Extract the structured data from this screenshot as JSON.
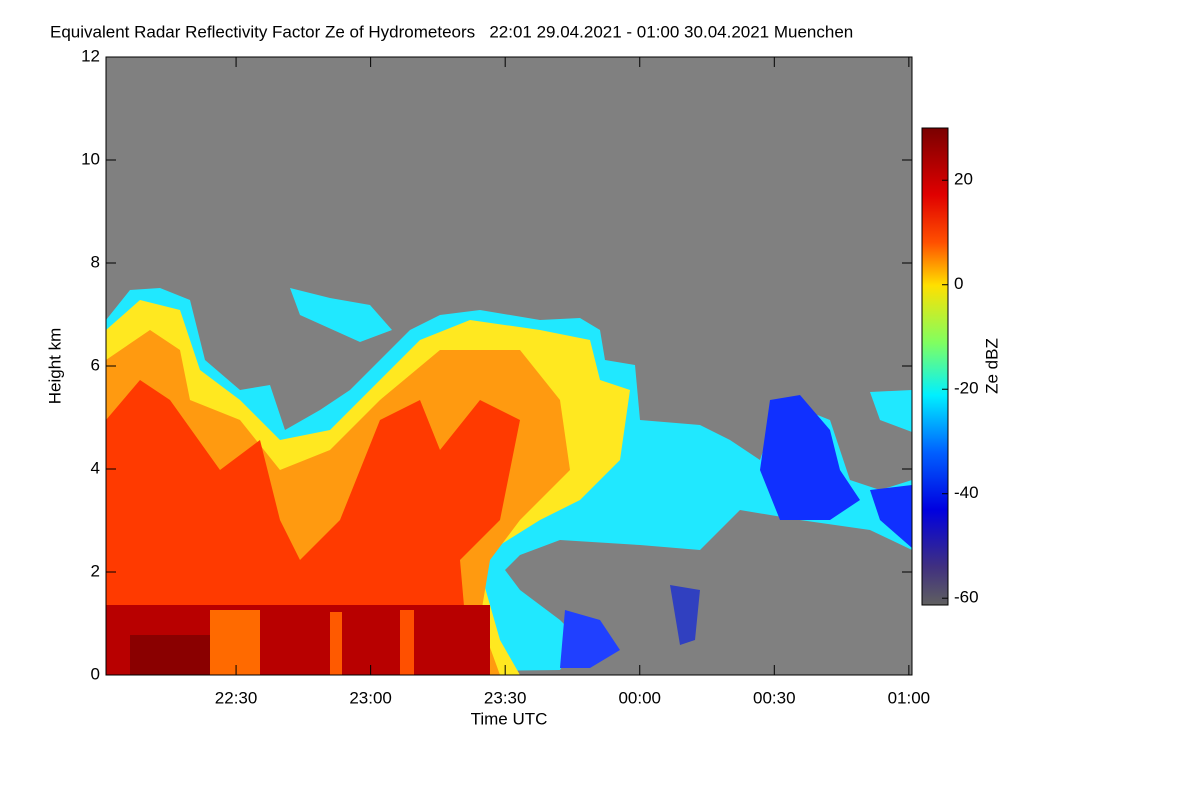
{
  "chart_data": {
    "type": "heatmap",
    "title": "Equivalent Radar Reflectivity Factor Ze of Hydrometeors   22:01 29.04.2021 - 01:00 30.04.2021 Muenchen",
    "xlabel": "Time UTC",
    "ylabel": "Height km",
    "xlim": [
      1,
      180.7
    ],
    "xticks": [
      {
        "value": 30,
        "label": "22:30"
      },
      {
        "value": 60,
        "label": "23:00"
      },
      {
        "value": 90,
        "label": "23:30"
      },
      {
        "value": 120,
        "label": "00:00"
      },
      {
        "value": 150,
        "label": "00:30"
      },
      {
        "value": 180,
        "label": "01:00"
      }
    ],
    "ylim": [
      0,
      12
    ],
    "yticks": [
      0,
      2,
      4,
      6,
      8,
      10,
      12
    ],
    "colorbar": {
      "label": "Ze dBZ",
      "lim": [
        -61.3,
        30
      ],
      "ticks": [
        20,
        0,
        -20,
        -40,
        -60
      ]
    }
  }
}
